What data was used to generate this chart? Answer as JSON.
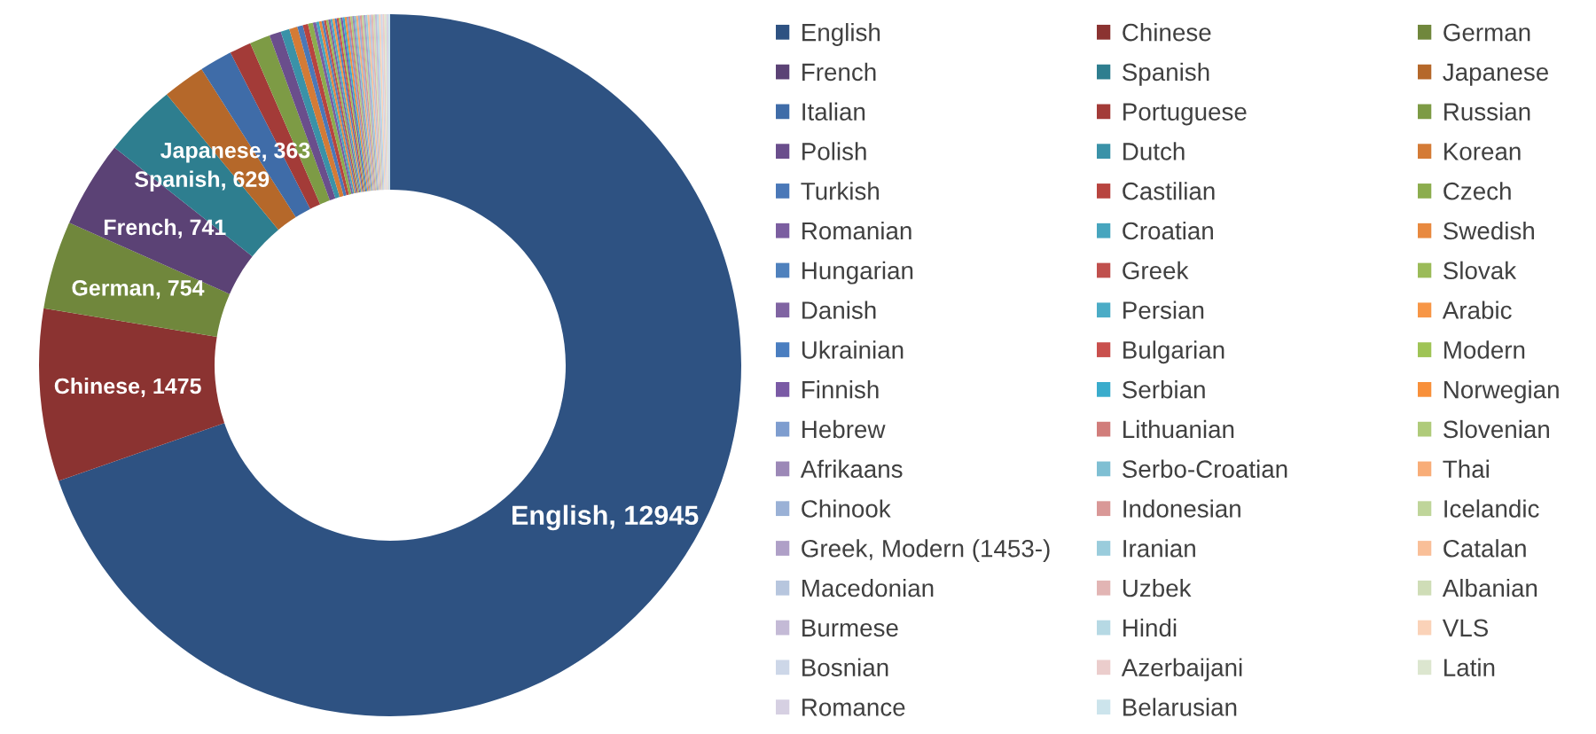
{
  "chart_data": {
    "type": "donut",
    "categories": [
      "English",
      "Chinese",
      "German",
      "French",
      "Spanish",
      "Japanese",
      "Italian",
      "Portuguese",
      "Russian",
      "Polish",
      "Dutch",
      "Korean",
      "Turkish",
      "Castilian",
      "Czech",
      "Romanian",
      "Croatian",
      "Swedish",
      "Hungarian",
      "Greek",
      "Slovak",
      "Danish",
      "Persian",
      "Arabic",
      "Ukrainian",
      "Bulgarian",
      "Modern",
      "Finnish",
      "Serbian",
      "Norwegian",
      "Hebrew",
      "Lithuanian",
      "Slovenian",
      "Afrikaans",
      "Serbo-Croatian",
      "Thai",
      "Chinook",
      "Indonesian",
      "Icelandic",
      "Greek, Modern (1453-)",
      "Iranian",
      "Catalan",
      "Macedonian",
      "Uzbek",
      "Albanian",
      "Burmese",
      "Hindi",
      "VLS",
      "Bosnian",
      "Azerbaijani",
      "Latin",
      "Romance",
      "Belarusian"
    ],
    "values": [
      12945,
      1475,
      754,
      741,
      629,
      363,
      280,
      185,
      175,
      100,
      75,
      70,
      48,
      45,
      42,
      28,
      25,
      22,
      20,
      19,
      19,
      18,
      18,
      18,
      17,
      17,
      17,
      17,
      17,
      17,
      16,
      16,
      16,
      16,
      16,
      16,
      16,
      16,
      16,
      16,
      16,
      16,
      16,
      16,
      16,
      16,
      16,
      16,
      16,
      16,
      16,
      16,
      16
    ],
    "colors": [
      "#2e5282",
      "#8b3331",
      "#70873c",
      "#5b4275",
      "#2e7e8f",
      "#b5682a",
      "#3f6ca8",
      "#a33b38",
      "#7d9b45",
      "#6a4e8c",
      "#3a92a8",
      "#d47b36",
      "#4a78b8",
      "#b8443f",
      "#8cad4e",
      "#7b5ea0",
      "#47a5be",
      "#e8893f",
      "#4f81bd",
      "#c0504d",
      "#9bbb59",
      "#8064a2",
      "#4bacc6",
      "#f79646",
      "#4a7ec0",
      "#c9504d",
      "#9fc456",
      "#7a5aa5",
      "#3aaccc",
      "#f8903a",
      "#7e9dcf",
      "#d17d7b",
      "#afcb7a",
      "#9c88b7",
      "#7fbfd3",
      "#f8ad78",
      "#9ab1d6",
      "#d99897",
      "#bfd59a",
      "#afa0c7",
      "#9accdc",
      "#f9bf98",
      "#b7c6de",
      "#e2b5b4",
      "#cfddb7",
      "#c4bad6",
      "#b6d9e4",
      "#fad2b8",
      "#cdd7e8",
      "#ebcdcc",
      "#dce6cf",
      "#d6d0e2",
      "#cce4ec"
    ],
    "value_labels": [
      "English, 12945",
      "Chinese, 1475",
      "German, 754",
      "French, 741",
      "Spanish, 629",
      "Japanese, 363",
      null,
      null,
      null,
      null,
      null,
      null,
      null,
      null,
      null,
      null,
      null,
      null,
      null,
      null,
      null,
      null,
      null,
      null,
      null,
      null,
      null,
      null,
      null,
      null,
      null,
      null,
      null,
      null,
      null,
      null,
      null,
      null,
      null,
      null,
      null,
      null,
      null,
      null,
      null,
      null,
      null,
      null,
      null,
      null,
      null,
      null,
      null
    ],
    "legend": "right"
  }
}
